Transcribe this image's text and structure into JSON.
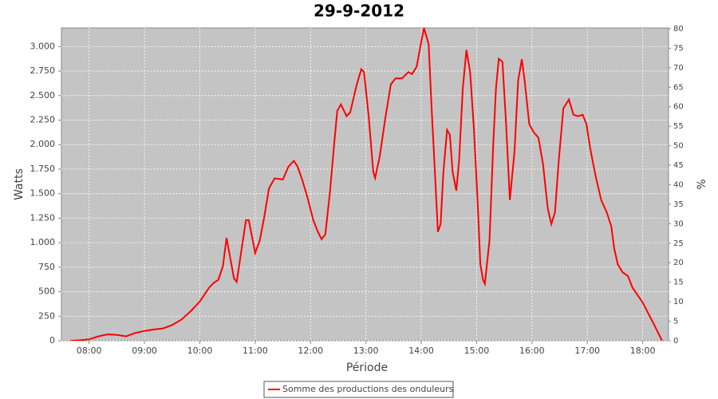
{
  "chart_data": {
    "type": "line",
    "title": "29-9-2012",
    "x_label": "Période",
    "y_label": "Watts",
    "y2_label": "%",
    "x": [
      "07:40",
      "07:50",
      "08:00",
      "08:10",
      "08:20",
      "08:30",
      "08:40",
      "08:50",
      "09:00",
      "09:10",
      "09:20",
      "09:30",
      "09:40",
      "09:50",
      "10:00",
      "10:10",
      "10:15",
      "10:20",
      "10:25",
      "10:29",
      "10:37",
      "10:40",
      "10:50",
      "10:53",
      "11:00",
      "11:05",
      "11:10",
      "11:15",
      "11:21",
      "11:30",
      "11:36",
      "11:42",
      "11:46",
      "11:51",
      "11:57",
      "12:03",
      "12:08",
      "12:12",
      "12:16",
      "12:21",
      "12:26",
      "12:29",
      "12:33",
      "12:39",
      "12:43",
      "12:50",
      "12:55",
      "12:58",
      "13:03",
      "13:08",
      "13:10",
      "13:15",
      "13:21",
      "13:27",
      "13:32",
      "13:39",
      "13:46",
      "13:50",
      "13:55",
      "13:59",
      "14:03",
      "14:08",
      "14:11",
      "14:15",
      "14:18",
      "14:21",
      "14:24",
      "14:28",
      "14:31",
      "14:34",
      "14:38",
      "14:41",
      "14:45",
      "14:49",
      "14:53",
      "14:57",
      "15:01",
      "15:04",
      "15:07",
      "15:09",
      "15:14",
      "15:18",
      "15:21",
      "15:24",
      "15:28",
      "15:32",
      "15:36",
      "15:41",
      "15:45",
      "15:49",
      "15:52",
      "15:57",
      "16:02",
      "16:07",
      "16:12",
      "16:17",
      "16:21",
      "16:25",
      "16:29",
      "16:34",
      "16:40",
      "16:45",
      "16:50",
      "16:55",
      "16:59",
      "17:03",
      "17:09",
      "17:15",
      "17:21",
      "17:26",
      "17:29",
      "17:33",
      "17:38",
      "17:44",
      "17:49",
      "18:00",
      "18:12",
      "18:21"
    ],
    "series": [
      {
        "name": "Somme des productions des onduleurs",
        "color": "#ff0000",
        "values": [
          0,
          5,
          15,
          45,
          65,
          60,
          45,
          80,
          100,
          115,
          125,
          160,
          215,
          300,
          400,
          540,
          590,
          620,
          760,
          1050,
          635,
          600,
          1230,
          1230,
          895,
          1025,
          1270,
          1555,
          1655,
          1645,
          1775,
          1835,
          1775,
          1640,
          1450,
          1230,
          1110,
          1035,
          1085,
          1515,
          2045,
          2345,
          2410,
          2290,
          2330,
          2610,
          2770,
          2740,
          2290,
          1720,
          1660,
          1880,
          2265,
          2615,
          2675,
          2675,
          2740,
          2720,
          2795,
          3000,
          3190,
          3025,
          2410,
          1680,
          1110,
          1190,
          1720,
          2150,
          2100,
          1720,
          1530,
          1840,
          2575,
          2965,
          2740,
          2165,
          1435,
          780,
          620,
          580,
          1025,
          2005,
          2575,
          2875,
          2845,
          2210,
          1435,
          1925,
          2655,
          2870,
          2655,
          2210,
          2125,
          2070,
          1800,
          1355,
          1190,
          1310,
          1840,
          2370,
          2460,
          2305,
          2290,
          2305,
          2210,
          1965,
          1680,
          1435,
          1310,
          1165,
          945,
          780,
          700,
          660,
          540,
          390,
          170,
          0
        ]
      }
    ],
    "xlim": [
      "07:30",
      "18:28"
    ],
    "xticks": [
      "08:00",
      "09:00",
      "10:00",
      "11:00",
      "12:00",
      "13:00",
      "14:00",
      "15:00",
      "16:00",
      "17:00",
      "18:00"
    ],
    "ylim": [
      0,
      3190
    ],
    "yticks": [
      0,
      250,
      500,
      750,
      {
        "value": 1000,
        "label": "1.000"
      },
      {
        "value": 1250,
        "label": "1.250"
      },
      {
        "value": 1500,
        "label": "1.500"
      },
      {
        "value": 1750,
        "label": "1.750"
      },
      {
        "value": 2000,
        "label": "2.000"
      },
      {
        "value": 2250,
        "label": "2.250"
      },
      {
        "value": 2500,
        "label": "2.500"
      },
      {
        "value": 2750,
        "label": "2.750"
      },
      {
        "value": 3000,
        "label": "3.000"
      }
    ],
    "y2lim": [
      0,
      80.2
    ],
    "y2ticks": [
      0,
      5,
      10,
      15,
      20,
      25,
      30,
      35,
      40,
      45,
      50,
      55,
      60,
      65,
      70,
      75,
      80
    ],
    "grid": true
  }
}
